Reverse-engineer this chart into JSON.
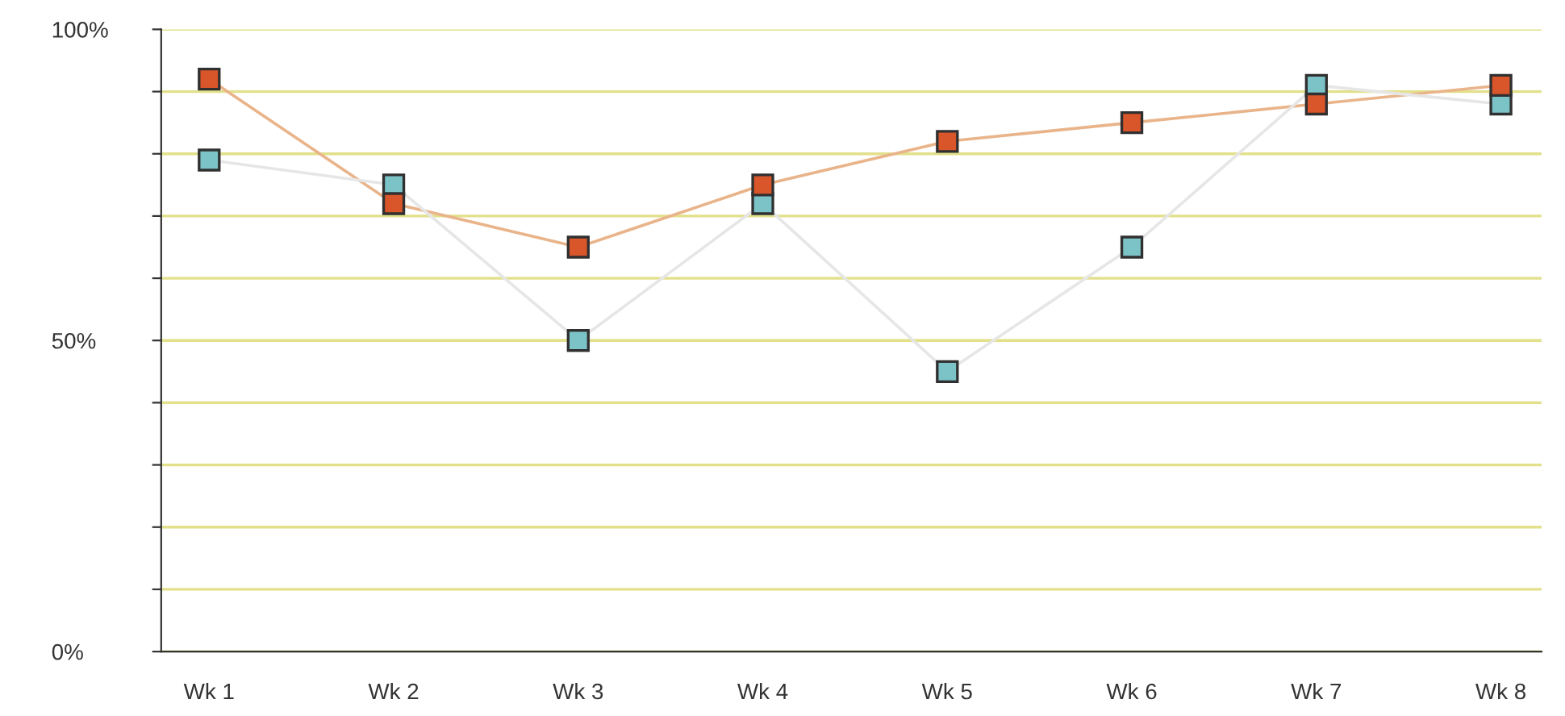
{
  "chart_data": {
    "type": "line",
    "categories": [
      "Wk 1",
      "Wk 2",
      "Wk 3",
      "Wk 4",
      "Wk 5",
      "Wk 6",
      "Wk 7",
      "Wk 8"
    ],
    "series": [
      {
        "color": "#e9b48a",
        "values": [
          92,
          72,
          65,
          75,
          82,
          85,
          88,
          91
        ]
      },
      {
        "color": "#e6e6e6",
        "values": [
          79,
          75,
          50,
          72,
          45,
          65,
          91,
          88
        ]
      }
    ],
    "marker": "square",
    "ylim": [
      0,
      100
    ],
    "yticks": [
      {
        "value": 0,
        "label": "0%"
      },
      {
        "value": 10,
        "label": null
      },
      {
        "value": 20,
        "label": null
      },
      {
        "value": 30,
        "label": null
      },
      {
        "value": 40,
        "label": null
      },
      {
        "value": 50,
        "label": "50%"
      },
      {
        "value": 60,
        "label": null
      },
      {
        "value": 70,
        "label": null
      },
      {
        "value": 80,
        "label": null
      },
      {
        "value": 90,
        "label": null
      },
      {
        "value": 100,
        "label": "100%"
      }
    ],
    "grid": "y"
  }
}
